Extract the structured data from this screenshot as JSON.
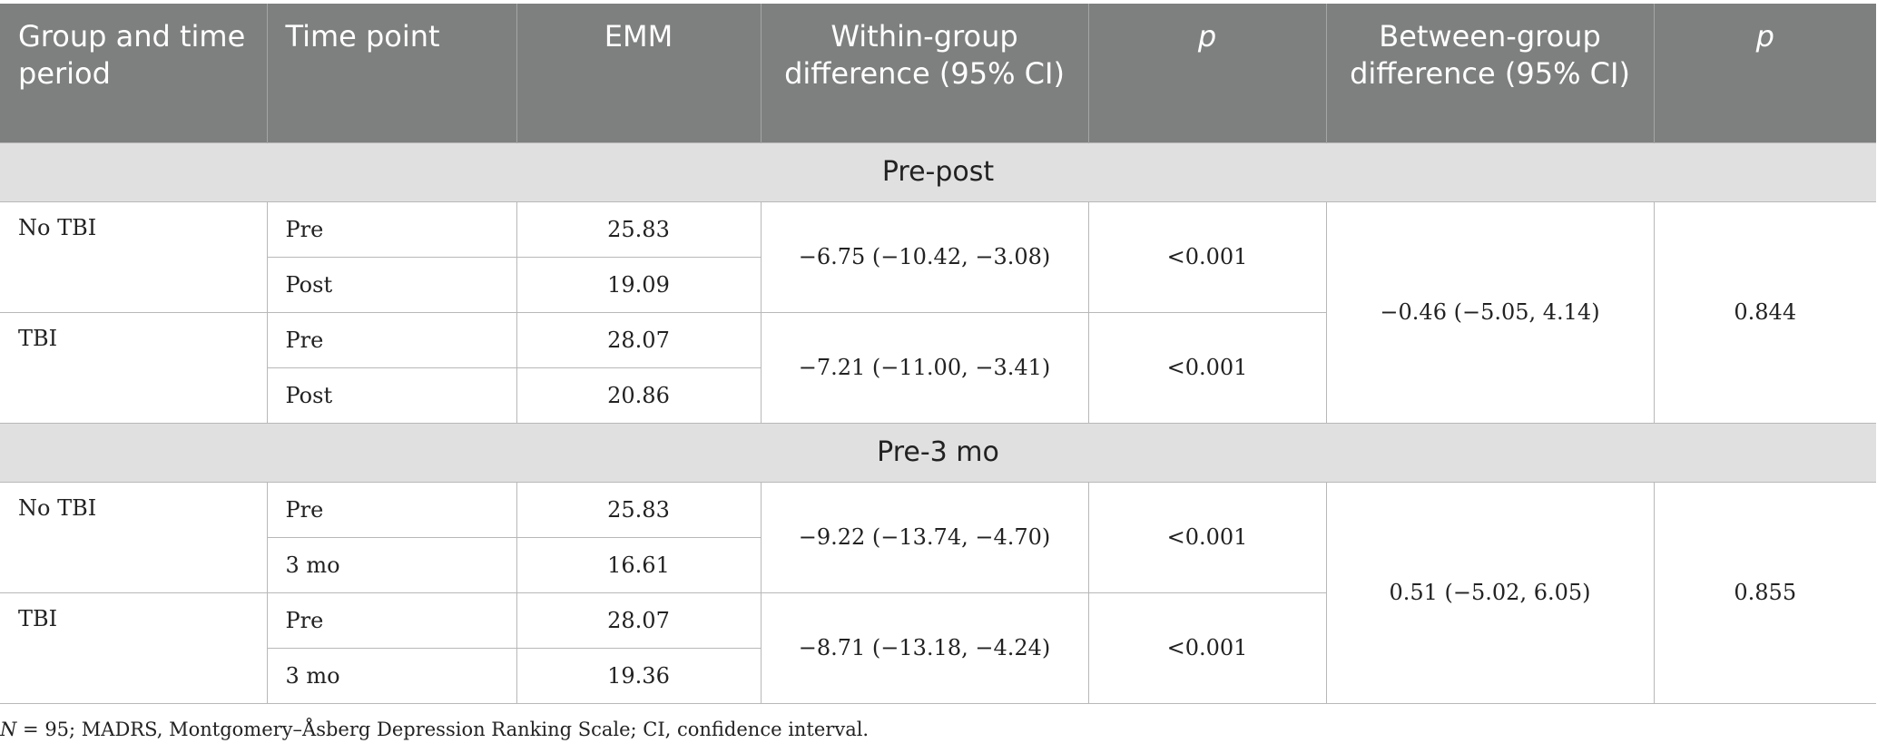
{
  "headers": {
    "group": "Group and time period",
    "time_point": "Time point",
    "emm": "EMM",
    "within": "Within-group difference (95% CI)",
    "p1": "p",
    "between": "Between-group difference (95% CI)",
    "p2": "p"
  },
  "sections": [
    {
      "title": "Pre-post",
      "between": "−0.46 (−5.05, 4.14)",
      "between_p": "0.844",
      "groups": [
        {
          "name": "No TBI",
          "within": "−6.75 (−10.42, −3.08)",
          "p": "<0.001",
          "rows": [
            {
              "time": "Pre",
              "emm": "25.83"
            },
            {
              "time": "Post",
              "emm": "19.09"
            }
          ]
        },
        {
          "name": "TBI",
          "within": "−7.21 (−11.00, −3.41)",
          "p": "<0.001",
          "rows": [
            {
              "time": "Pre",
              "emm": "28.07"
            },
            {
              "time": "Post",
              "emm": "20.86"
            }
          ]
        }
      ]
    },
    {
      "title": "Pre-3 mo",
      "between": "0.51 (−5.02, 6.05)",
      "between_p": "0.855",
      "groups": [
        {
          "name": "No TBI",
          "within": "−9.22 (−13.74, −4.70)",
          "p": "<0.001",
          "rows": [
            {
              "time": "Pre",
              "emm": "25.83"
            },
            {
              "time": "3 mo",
              "emm": "16.61"
            }
          ]
        },
        {
          "name": "TBI",
          "within": "−8.71 (−13.18, −4.24)",
          "p": "<0.001",
          "rows": [
            {
              "time": "Pre",
              "emm": "28.07"
            },
            {
              "time": "3 mo",
              "emm": "19.36"
            }
          ]
        }
      ]
    }
  ],
  "footnote": {
    "n_label": "N",
    "text": " = 95; MADRS, Montgomery–Åsberg Depression Ranking Scale; CI, confidence interval."
  }
}
